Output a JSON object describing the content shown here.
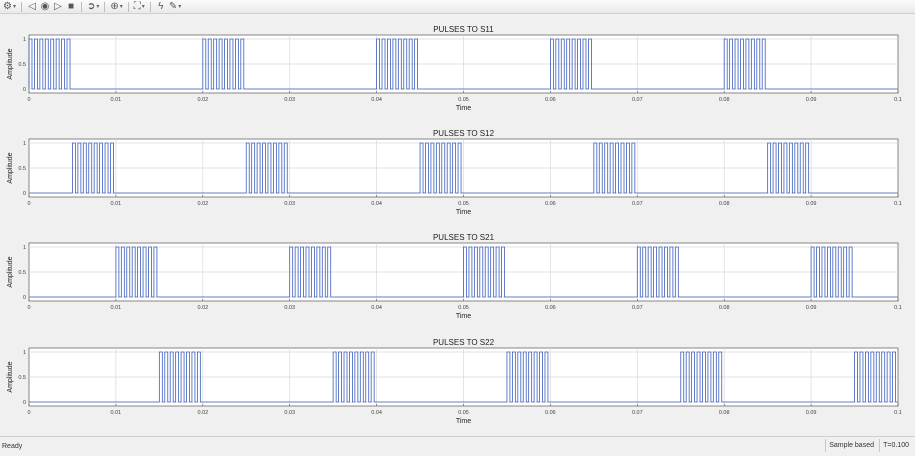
{
  "toolbar": {
    "items": [
      {
        "name": "settings-icon",
        "glyph": "⚙",
        "dropdown": true
      },
      {
        "sep": true
      },
      {
        "name": "step-back-icon",
        "glyph": "◁"
      },
      {
        "name": "record-icon",
        "glyph": "◉"
      },
      {
        "name": "run-icon",
        "glyph": "▷"
      },
      {
        "name": "stop-icon",
        "glyph": "■"
      },
      {
        "sep": true
      },
      {
        "name": "highlight-icon",
        "glyph": "➲",
        "dropdown": true
      },
      {
        "sep": true
      },
      {
        "name": "zoom-icon",
        "glyph": "⊕",
        "dropdown": true
      },
      {
        "sep": true
      },
      {
        "name": "scale-icon",
        "glyph": "⛶",
        "dropdown": true
      },
      {
        "sep": true
      },
      {
        "name": "triggers-icon",
        "glyph": "ϟ"
      },
      {
        "name": "measurements-icon",
        "glyph": "✎",
        "dropdown": true
      }
    ]
  },
  "undock_glyph": "▾",
  "status": {
    "left": "Ready",
    "mode": "Sample based",
    "time": "T=0.100"
  },
  "chart_data": [
    {
      "type": "line",
      "title": "PULSES TO S11",
      "xlabel": "Time",
      "ylabel": "Amplitude",
      "xlim": [
        0,
        0.1
      ],
      "ylim": [
        -0.08,
        1.08
      ],
      "xticks": [
        "0",
        "0.01",
        "0.02",
        "0.03",
        "0.04",
        "0.05",
        "0.06",
        "0.07",
        "0.08",
        "0.09",
        "0.1"
      ],
      "yticks": [
        "0",
        "0.5",
        "1"
      ],
      "grid": true,
      "color": "#3d5fbf",
      "bursts": [
        [
          0.0,
          0.005
        ],
        [
          0.02,
          0.025
        ],
        [
          0.04,
          0.045
        ],
        [
          0.06,
          0.065
        ],
        [
          0.08,
          0.085
        ]
      ],
      "pulses_per_burst": 8
    },
    {
      "type": "line",
      "title": "PULSES TO S12",
      "xlabel": "Time",
      "ylabel": "Amplitude",
      "xlim": [
        0,
        0.1
      ],
      "ylim": [
        -0.08,
        1.08
      ],
      "xticks": [
        "0",
        "0.01",
        "0.02",
        "0.03",
        "0.04",
        "0.05",
        "0.06",
        "0.07",
        "0.08",
        "0.09",
        "0.1"
      ],
      "yticks": [
        "0",
        "0.5",
        "1"
      ],
      "grid": true,
      "color": "#3d5fbf",
      "bursts": [
        [
          0.005,
          0.01
        ],
        [
          0.025,
          0.03
        ],
        [
          0.045,
          0.05
        ],
        [
          0.065,
          0.07
        ],
        [
          0.085,
          0.09
        ]
      ],
      "pulses_per_burst": 8
    },
    {
      "type": "line",
      "title": "PULSES TO S21",
      "xlabel": "Time",
      "ylabel": "Amplitude",
      "xlim": [
        0,
        0.1
      ],
      "ylim": [
        -0.08,
        1.08
      ],
      "xticks": [
        "0",
        "0.01",
        "0.02",
        "0.03",
        "0.04",
        "0.05",
        "0.06",
        "0.07",
        "0.08",
        "0.09",
        "0.1"
      ],
      "yticks": [
        "0",
        "0.5",
        "1"
      ],
      "grid": true,
      "color": "#3d5fbf",
      "bursts": [
        [
          0.01,
          0.015
        ],
        [
          0.03,
          0.035
        ],
        [
          0.05,
          0.055
        ],
        [
          0.07,
          0.075
        ],
        [
          0.09,
          0.095
        ]
      ],
      "pulses_per_burst": 8
    },
    {
      "type": "line",
      "title": "PULSES TO S22",
      "xlabel": "Time",
      "ylabel": "Amplitude",
      "xlim": [
        0,
        0.1
      ],
      "ylim": [
        -0.08,
        1.08
      ],
      "xticks": [
        "0",
        "0.01",
        "0.02",
        "0.03",
        "0.04",
        "0.05",
        "0.06",
        "0.07",
        "0.08",
        "0.09",
        "0.1"
      ],
      "yticks": [
        "0",
        "0.5",
        "1"
      ],
      "grid": true,
      "color": "#3d5fbf",
      "bursts": [
        [
          0.015,
          0.02
        ],
        [
          0.035,
          0.04
        ],
        [
          0.055,
          0.06
        ],
        [
          0.075,
          0.08
        ],
        [
          0.095,
          0.1
        ]
      ],
      "pulses_per_burst": 8
    }
  ]
}
